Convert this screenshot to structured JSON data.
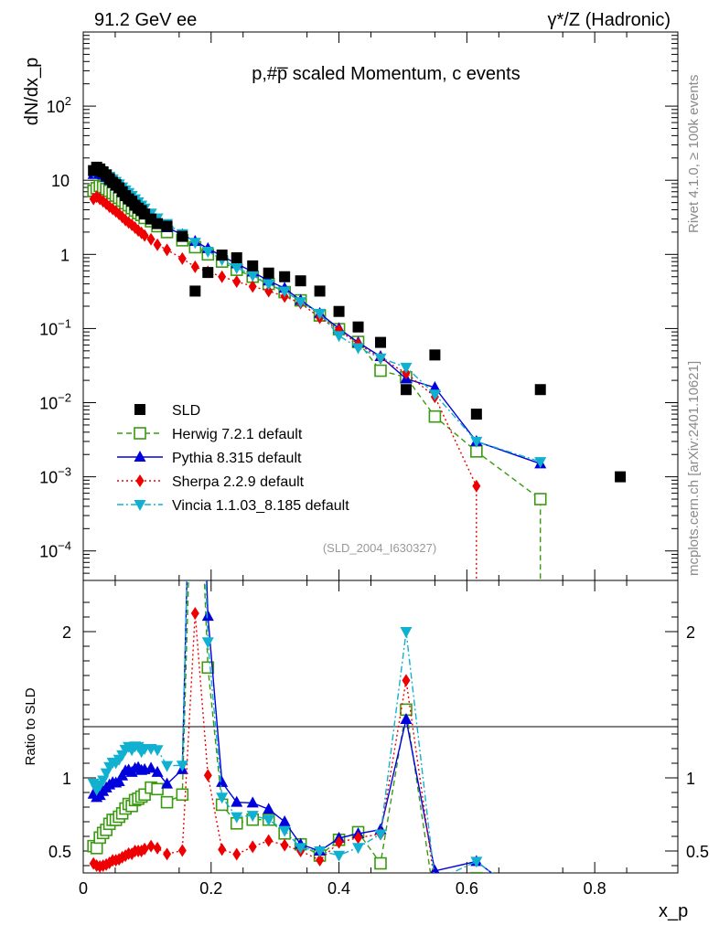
{
  "header": {
    "left": "91.2 GeV ee",
    "right": "γ*/Z (Hadronic)"
  },
  "side_labels": {
    "rivet": "Rivet 4.1.0, ≥ 100k events",
    "mcplots": "mcplots.cern.ch [arXiv:2401.10621]"
  },
  "chart_data": {
    "type": "line",
    "title": "p,#p̅ scaled Momentum, c events",
    "analysis_id": "(SLD_2004_I630327)",
    "xlabel": "x_p",
    "ylabel_main": "dN/dx_p",
    "ylabel_ratio": "Ratio to SLD",
    "xlim": [
      0,
      0.93
    ],
    "ylim_main": [
      4e-05,
      1000
    ],
    "yscale_main": "log",
    "ylim_ratio": [
      0.35,
      2.35
    ],
    "x_ticks": [
      "0",
      "0.2",
      "0.4",
      "0.6",
      "0.8"
    ],
    "y_ticks_main": [
      "10^{-4}",
      "10^{-3}",
      "10^{-2}",
      "10^{-1}",
      "1",
      "10",
      "10^{2}"
    ],
    "y_ticks_ratio": [
      "0.5",
      "1",
      "2"
    ],
    "legend": [
      "SLD",
      "Herwig 7.2.1 default",
      "Pythia 8.315 default",
      "Sherpa 2.2.9 default",
      "Vincia 1.1.03_8.185 default"
    ],
    "series": [
      {
        "name": "SLD",
        "color": "#000000",
        "marker": "square",
        "line": "none",
        "x": [
          0.016,
          0.021,
          0.026,
          0.031,
          0.036,
          0.041,
          0.046,
          0.051,
          0.056,
          0.061,
          0.066,
          0.071,
          0.076,
          0.081,
          0.086,
          0.091,
          0.096,
          0.106,
          0.116,
          0.131,
          0.155,
          0.175,
          0.195,
          0.217,
          0.24,
          0.265,
          0.29,
          0.315,
          0.34,
          0.37,
          0.4,
          0.43,
          0.465,
          0.505,
          0.55,
          0.615,
          0.715,
          0.84
        ],
        "y": [
          13.5,
          15.0,
          14.2,
          13.0,
          11.8,
          10.5,
          9.4,
          8.7,
          7.9,
          7.0,
          6.2,
          5.6,
          5.2,
          4.6,
          4.2,
          3.9,
          3.5,
          3.0,
          2.6,
          2.4,
          1.75,
          0.32,
          0.57,
          0.98,
          0.9,
          0.7,
          0.56,
          0.5,
          0.44,
          0.32,
          0.17,
          0.105,
          0.065,
          0.015,
          0.044,
          0.007,
          0.015,
          0.001
        ]
      },
      {
        "name": "Herwig 7.2.1 default",
        "color": "#3a9a10",
        "marker": "open-square",
        "line": "dashed",
        "x": [
          0.016,
          0.021,
          0.026,
          0.031,
          0.036,
          0.041,
          0.046,
          0.051,
          0.056,
          0.061,
          0.066,
          0.071,
          0.076,
          0.081,
          0.086,
          0.091,
          0.096,
          0.106,
          0.116,
          0.131,
          0.155,
          0.175,
          0.195,
          0.217,
          0.24,
          0.265,
          0.29,
          0.315,
          0.34,
          0.37,
          0.4,
          0.43,
          0.465,
          0.505,
          0.55,
          0.615,
          0.715
        ],
        "y": [
          7.2,
          7.8,
          8.4,
          8.1,
          7.6,
          7.2,
          6.7,
          6.2,
          5.8,
          5.3,
          4.9,
          4.6,
          4.2,
          3.9,
          3.6,
          3.4,
          3.1,
          2.8,
          2.4,
          2.0,
          1.55,
          1.25,
          1.0,
          0.8,
          0.62,
          0.5,
          0.4,
          0.31,
          0.24,
          0.15,
          0.098,
          0.066,
          0.027,
          0.022,
          0.0065,
          0.0022,
          0.0005
        ]
      },
      {
        "name": "Pythia 8.315 default",
        "color": "#0000dd",
        "marker": "triangle-up",
        "line": "solid",
        "x": [
          0.016,
          0.021,
          0.026,
          0.031,
          0.036,
          0.041,
          0.046,
          0.051,
          0.056,
          0.061,
          0.066,
          0.071,
          0.076,
          0.081,
          0.086,
          0.091,
          0.096,
          0.106,
          0.116,
          0.131,
          0.155,
          0.175,
          0.195,
          0.217,
          0.24,
          0.265,
          0.29,
          0.315,
          0.34,
          0.37,
          0.4,
          0.43,
          0.465,
          0.505,
          0.55,
          0.615,
          0.715
        ],
        "y": [
          12.0,
          13.0,
          12.5,
          11.8,
          11.0,
          10.0,
          9.1,
          8.4,
          7.7,
          7.1,
          6.5,
          5.9,
          5.4,
          4.9,
          4.5,
          4.1,
          3.7,
          3.2,
          2.7,
          2.3,
          1.85,
          1.5,
          1.2,
          0.95,
          0.75,
          0.58,
          0.44,
          0.35,
          0.24,
          0.16,
          0.1,
          0.065,
          0.042,
          0.021,
          0.016,
          0.003,
          0.0015
        ]
      },
      {
        "name": "Sherpa 2.2.9 default",
        "color": "#ee0000",
        "marker": "diamond",
        "line": "dotted",
        "x": [
          0.016,
          0.021,
          0.026,
          0.031,
          0.036,
          0.041,
          0.046,
          0.051,
          0.056,
          0.061,
          0.066,
          0.071,
          0.076,
          0.081,
          0.086,
          0.091,
          0.096,
          0.106,
          0.116,
          0.131,
          0.155,
          0.175,
          0.195,
          0.217,
          0.24,
          0.265,
          0.29,
          0.315,
          0.34,
          0.37,
          0.4,
          0.43,
          0.465,
          0.505,
          0.55,
          0.615
        ],
        "y": [
          5.6,
          6.0,
          5.6,
          5.2,
          4.8,
          4.4,
          4.1,
          3.8,
          3.5,
          3.2,
          2.9,
          2.7,
          2.5,
          2.3,
          2.1,
          1.95,
          1.8,
          1.6,
          1.35,
          1.15,
          0.88,
          0.68,
          0.58,
          0.5,
          0.43,
          0.37,
          0.32,
          0.27,
          0.22,
          0.14,
          0.095,
          0.062,
          0.04,
          0.025,
          0.012,
          0.00075
        ]
      },
      {
        "name": "Vincia 1.1.03_8.185 default",
        "color": "#10b0d0",
        "marker": "triangle-down",
        "line": "dashdot",
        "x": [
          0.016,
          0.021,
          0.026,
          0.031,
          0.036,
          0.041,
          0.046,
          0.051,
          0.056,
          0.061,
          0.066,
          0.071,
          0.076,
          0.081,
          0.086,
          0.091,
          0.096,
          0.106,
          0.116,
          0.131,
          0.155,
          0.175,
          0.195,
          0.217,
          0.24,
          0.265,
          0.29,
          0.315,
          0.34,
          0.37,
          0.4,
          0.43,
          0.465,
          0.505,
          0.55,
          0.615,
          0.715
        ],
        "y": [
          13.0,
          13.8,
          13.5,
          12.8,
          12.2,
          11.3,
          10.4,
          9.6,
          8.9,
          8.1,
          7.4,
          6.8,
          6.2,
          5.6,
          5.1,
          4.6,
          4.2,
          3.6,
          3.1,
          2.6,
          1.9,
          1.45,
          1.1,
          0.85,
          0.66,
          0.52,
          0.4,
          0.32,
          0.23,
          0.16,
          0.08,
          0.055,
          0.04,
          0.03,
          0.013,
          0.003,
          0.0016
        ]
      }
    ]
  }
}
